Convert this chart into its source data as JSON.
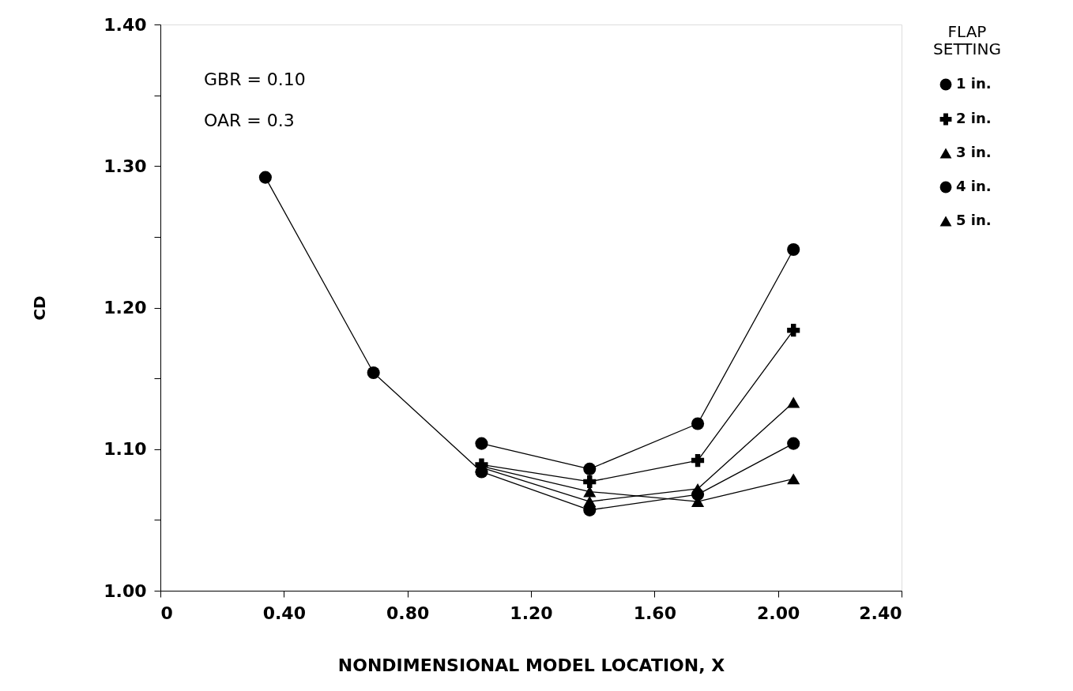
{
  "chart_data": {
    "type": "line",
    "xlabel": "NONDIMENSIONAL  MODEL  LOCATION,  X",
    "ylabel": "CD",
    "legend_title": "FLAP SETTING",
    "legend": "right",
    "grid": false,
    "xlim": [
      0,
      2.4
    ],
    "xticks": [
      0,
      {
        "value": 0.4,
        "label": "0.40"
      },
      {
        "value": 0.8,
        "label": "0.80"
      },
      {
        "value": 1.2,
        "label": "1.20"
      },
      {
        "value": 1.6,
        "label": "1.60"
      },
      {
        "value": 2.0,
        "label": "2.00"
      },
      {
        "value": 2.4,
        "label": "2.40"
      }
    ],
    "ylim": [
      1.0,
      1.4
    ],
    "yticks": [
      {
        "value": 1.0,
        "label": "1.00"
      },
      {
        "value": 1.05,
        "label": null
      },
      {
        "value": 1.1,
        "label": "1.10"
      },
      {
        "value": 1.15,
        "label": null
      },
      {
        "value": 1.2,
        "label": "1.20"
      },
      {
        "value": 1.25,
        "label": null
      },
      {
        "value": 1.3,
        "label": "1.30"
      },
      {
        "value": 1.35,
        "label": null
      },
      {
        "value": 1.4,
        "label": "1.40"
      }
    ],
    "annotations": [
      "GBR  =  0.10",
      "OAR  =  0.3"
    ],
    "line_style": "solid",
    "series": [
      {
        "name": "1  in.",
        "color": "#000000",
        "marker": "circle",
        "x": [
          1.04,
          1.39,
          1.74,
          2.05
        ],
        "values": [
          1.104,
          1.086,
          1.118,
          1.241
        ]
      },
      {
        "name": "2  in.",
        "color": "#000000",
        "marker": "cross",
        "x": [
          1.04,
          1.39,
          1.74,
          2.05
        ],
        "values": [
          1.089,
          1.077,
          1.092,
          1.184
        ]
      },
      {
        "name": "3  in.",
        "color": "#000000",
        "marker": "triangle",
        "x": [
          1.04,
          1.39,
          1.74,
          2.05
        ],
        "values": [
          1.087,
          1.063,
          1.072,
          1.133
        ]
      },
      {
        "name": "4  in.",
        "color": "#000000",
        "marker": "circle",
        "x": [
          0.34,
          0.69,
          1.04,
          1.39,
          1.74,
          2.05
        ],
        "values": [
          1.292,
          1.154,
          1.084,
          1.057,
          1.068,
          1.104
        ]
      },
      {
        "name": "5  in.",
        "color": "#000000",
        "marker": "triangle",
        "x": [
          1.04,
          1.39,
          1.74,
          2.05
        ],
        "values": [
          1.088,
          1.07,
          1.063,
          1.079
        ]
      }
    ]
  }
}
